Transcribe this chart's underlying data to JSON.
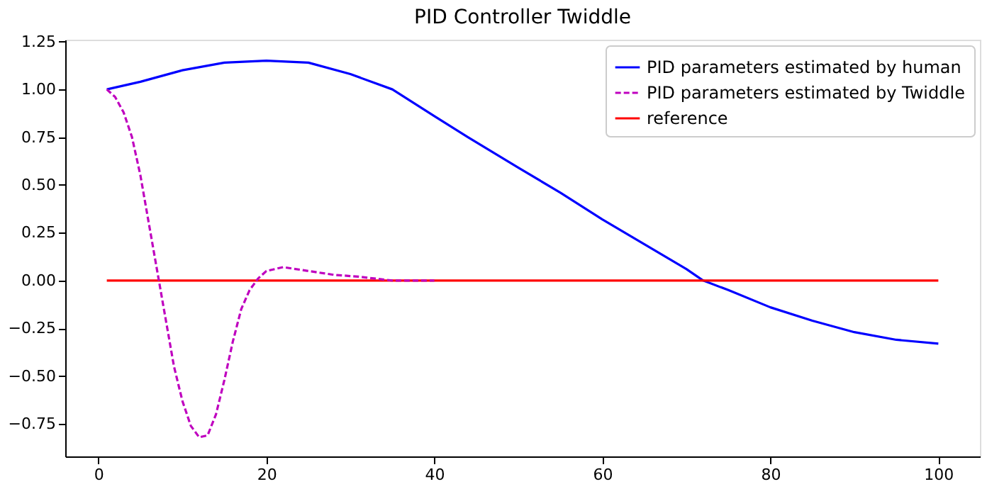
{
  "chart_data": {
    "type": "line",
    "title": "PID Controller Twiddle",
    "series": [
      {
        "name": "PID parameters estimated by human",
        "color": "#0000ff",
        "line_style": "solid",
        "x": [
          1,
          5,
          10,
          15,
          20,
          25,
          30,
          35,
          40,
          44,
          50,
          55,
          60,
          65,
          70,
          72,
          75,
          80,
          85,
          90,
          95,
          100
        ],
        "values": [
          1.0,
          1.04,
          1.1,
          1.14,
          1.15,
          1.14,
          1.08,
          1.0,
          0.86,
          0.75,
          0.59,
          0.46,
          0.32,
          0.19,
          0.06,
          0.0,
          -0.05,
          -0.14,
          -0.21,
          -0.27,
          -0.31,
          -0.33
        ]
      },
      {
        "name": "PID parameters estimated by Twiddle",
        "color": "#bf00bf",
        "line_style": "dashed",
        "x": [
          1,
          2,
          3,
          4,
          5,
          6,
          7,
          8,
          9,
          10,
          11,
          12,
          13,
          14,
          15,
          16,
          17,
          18,
          19,
          20,
          22,
          25,
          28,
          31,
          35,
          40
        ],
        "values": [
          1.0,
          0.96,
          0.88,
          0.75,
          0.55,
          0.3,
          0.05,
          -0.2,
          -0.45,
          -0.63,
          -0.76,
          -0.82,
          -0.81,
          -0.7,
          -0.52,
          -0.32,
          -0.15,
          -0.05,
          0.01,
          0.05,
          0.07,
          0.05,
          0.03,
          0.02,
          0.0,
          0.0
        ]
      },
      {
        "name": "reference",
        "color": "#ff0000",
        "line_style": "solid",
        "x": [
          1,
          100
        ],
        "values": [
          0,
          0
        ]
      }
    ],
    "xlim": [
      -3.95,
      104.95
    ],
    "xticks": [
      0,
      20,
      40,
      60,
      80,
      100
    ],
    "ylim": [
      -0.92,
      1.26
    ],
    "yticks": [
      {
        "value": -0.75,
        "label": "−0.75"
      },
      {
        "value": -0.5,
        "label": "−0.50"
      },
      {
        "value": -0.25,
        "label": "−0.25"
      },
      {
        "value": 0,
        "label": "0.00"
      },
      {
        "value": 0.25,
        "label": "0.25"
      },
      {
        "value": 0.5,
        "label": "0.50"
      },
      {
        "value": 0.75,
        "label": "0.75"
      },
      {
        "value": 1.0,
        "label": "1.00"
      },
      {
        "value": 1.25,
        "label": "1.25"
      }
    ],
    "grid": false,
    "legend": "top right"
  }
}
